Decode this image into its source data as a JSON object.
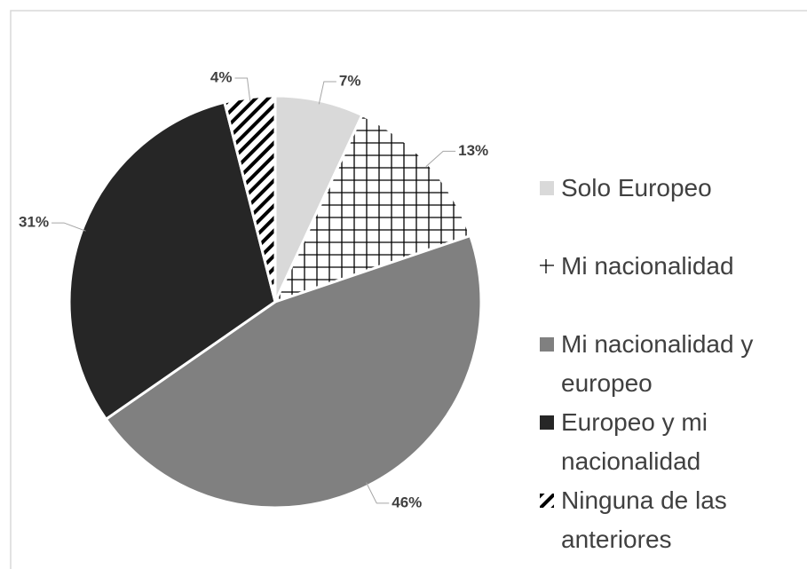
{
  "chart_data": {
    "type": "pie",
    "categories": [
      "Solo Europeo",
      "Mi nacionalidad",
      "Mi nacionalidad y europeo",
      "Europeo y mi nacionalidad",
      "Ninguna de las anteriores"
    ],
    "values": [
      7,
      13,
      46,
      31,
      4
    ],
    "value_labels": [
      "7%",
      "13%",
      "46%",
      "31%",
      "4%"
    ],
    "colors": [
      "#d9d9d9",
      "crosshatch",
      "#808080",
      "#262626",
      "diagonal-stripes"
    ],
    "legend": "right"
  }
}
